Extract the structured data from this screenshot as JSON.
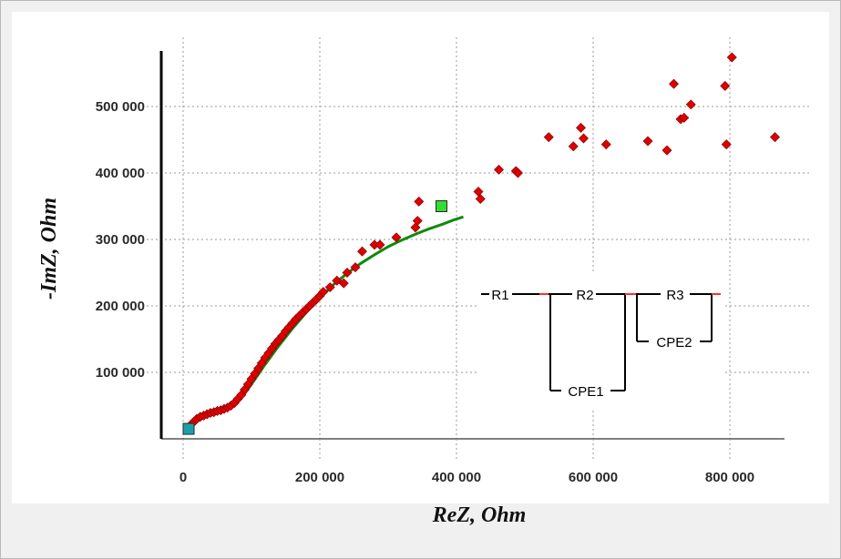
{
  "chart_data": {
    "type": "scatter",
    "title": "",
    "xlabel": "ReZ, Ohm",
    "ylabel": "-ImZ, Ohm",
    "xlim": [
      0,
      880000
    ],
    "ylim": [
      -20000,
      580000
    ],
    "x_ticks": [
      0,
      200000,
      400000,
      600000,
      800000
    ],
    "y_ticks": [
      100000,
      200000,
      300000,
      400000,
      500000
    ],
    "x_tick_labels": [
      "0",
      "200 000",
      "400 000",
      "600 000",
      "800 000"
    ],
    "y_tick_labels": [
      "100 000",
      "200 000",
      "300 000",
      "400 000",
      "500 000"
    ],
    "grid": true,
    "series": [
      {
        "marker": "diamond",
        "color": "#dd0000",
        "points": [
          [
            12000,
            22000
          ],
          [
            16000,
            26000
          ],
          [
            20000,
            30000
          ],
          [
            25000,
            33000
          ],
          [
            30000,
            35000
          ],
          [
            35000,
            37000
          ],
          [
            40000,
            39000
          ],
          [
            45000,
            40000
          ],
          [
            50000,
            42000
          ],
          [
            55000,
            43000
          ],
          [
            60000,
            45000
          ],
          [
            65000,
            47000
          ],
          [
            70000,
            50000
          ],
          [
            75000,
            54000
          ],
          [
            80000,
            60000
          ],
          [
            85000,
            66000
          ],
          [
            90000,
            74000
          ],
          [
            95000,
            82000
          ],
          [
            100000,
            90000
          ],
          [
            105000,
            98000
          ],
          [
            110000,
            106000
          ],
          [
            115000,
            114000
          ],
          [
            120000,
            122000
          ],
          [
            125000,
            129000
          ],
          [
            130000,
            136000
          ],
          [
            135000,
            143000
          ],
          [
            140000,
            149000
          ],
          [
            145000,
            155000
          ],
          [
            150000,
            162000
          ],
          [
            155000,
            168000
          ],
          [
            160000,
            174000
          ],
          [
            165000,
            180000
          ],
          [
            170000,
            185000
          ],
          [
            175000,
            190000
          ],
          [
            180000,
            195000
          ],
          [
            185000,
            200000
          ],
          [
            190000,
            205000
          ],
          [
            195000,
            210000
          ],
          [
            200000,
            215000
          ],
          [
            205000,
            221000
          ],
          [
            215000,
            228000
          ],
          [
            225000,
            238000
          ],
          [
            235000,
            234000
          ],
          [
            240000,
            250000
          ],
          [
            252000,
            258000
          ],
          [
            262000,
            282000
          ],
          [
            280000,
            292000
          ],
          [
            288000,
            292000
          ],
          [
            312000,
            303000
          ],
          [
            340000,
            318000
          ],
          [
            343000,
            328000
          ],
          [
            345000,
            357000
          ],
          [
            432000,
            372000
          ],
          [
            435000,
            361000
          ],
          [
            462000,
            405000
          ],
          [
            487000,
            403000
          ],
          [
            490000,
            400000
          ],
          [
            535000,
            454000
          ],
          [
            571000,
            440000
          ],
          [
            582000,
            468000
          ],
          [
            586000,
            452000
          ],
          [
            619000,
            443000
          ],
          [
            680000,
            448000
          ],
          [
            708000,
            434000
          ],
          [
            718000,
            534000
          ],
          [
            728000,
            481000
          ],
          [
            733000,
            483000
          ],
          [
            743000,
            503000
          ],
          [
            793000,
            531000
          ],
          [
            795000,
            443000
          ],
          [
            803000,
            574000
          ],
          [
            866000,
            454000
          ]
        ]
      },
      {
        "type": "line",
        "color": "#0f8a0f",
        "points": [
          [
            10000,
            18000
          ],
          [
            20000,
            27000
          ],
          [
            30000,
            33000
          ],
          [
            40000,
            37000
          ],
          [
            50000,
            40000
          ],
          [
            60000,
            42000
          ],
          [
            70000,
            47000
          ],
          [
            80000,
            56000
          ],
          [
            90000,
            68000
          ],
          [
            100000,
            82000
          ],
          [
            110000,
            97000
          ],
          [
            120000,
            112000
          ],
          [
            130000,
            126000
          ],
          [
            140000,
            140000
          ],
          [
            150000,
            153000
          ],
          [
            160000,
            166000
          ],
          [
            170000,
            178000
          ],
          [
            180000,
            190000
          ],
          [
            190000,
            201000
          ],
          [
            200000,
            212000
          ],
          [
            210000,
            222000
          ],
          [
            220000,
            232000
          ],
          [
            240000,
            249000
          ],
          [
            260000,
            264000
          ],
          [
            280000,
            277000
          ],
          [
            300000,
            289000
          ],
          [
            320000,
            299000
          ],
          [
            340000,
            308000
          ],
          [
            360000,
            316000
          ],
          [
            380000,
            323000
          ],
          [
            395000,
            329000
          ],
          [
            410000,
            334000
          ]
        ]
      },
      {
        "marker": "square",
        "color": "#33dd33",
        "points": [
          [
            378000,
            350000
          ]
        ]
      },
      {
        "marker": "square",
        "color": "#1a9fa8",
        "points": [
          [
            8000,
            15000
          ]
        ]
      }
    ]
  },
  "circuit": {
    "labels": {
      "r1": "R1",
      "r2": "R2",
      "r3": "R3",
      "cpe1": "CPE1",
      "cpe2": "CPE2"
    }
  }
}
